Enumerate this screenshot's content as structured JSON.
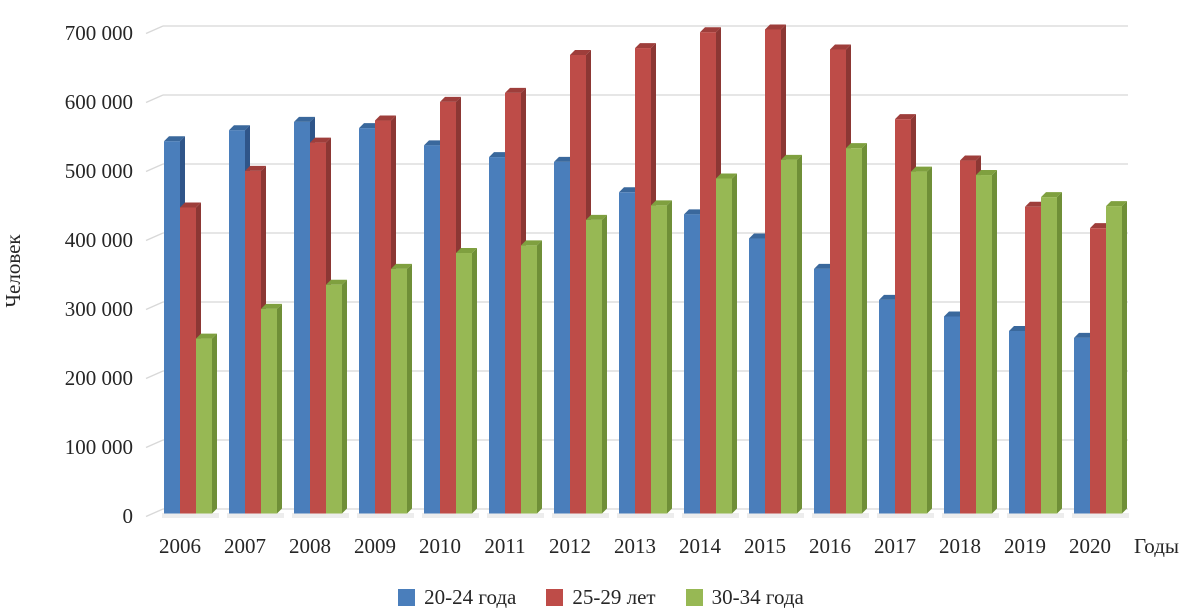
{
  "chart_data": {
    "type": "bar",
    "title": "",
    "ylabel": "Человек",
    "xlabel": "Годы",
    "categories": [
      "2006",
      "2007",
      "2008",
      "2009",
      "2010",
      "2011",
      "2012",
      "2013",
      "2014",
      "2015",
      "2016",
      "2017",
      "2018",
      "2019",
      "2020"
    ],
    "series": [
      {
        "name": "20-24 года",
        "color": "#4A7EBB",
        "color_top": "#3A689C",
        "color_side": "#2F5589",
        "values": [
          533000,
          549000,
          561000,
          552000,
          527000,
          510000,
          503000,
          459000,
          427000,
          392000,
          348000,
          303000,
          279000,
          258000,
          248000
        ]
      },
      {
        "name": "25-29 лет",
        "color": "#BE4C48",
        "color_top": "#9E3E3B",
        "color_side": "#8C3734",
        "values": [
          437000,
          490000,
          531000,
          563000,
          590000,
          603000,
          658000,
          668000,
          691000,
          695000,
          666000,
          565000,
          505000,
          438000,
          407000
        ]
      },
      {
        "name": "30-34 года",
        "color": "#97B854",
        "color_top": "#7FA03F",
        "color_side": "#6F8F37",
        "values": [
          247000,
          290000,
          325000,
          348000,
          371000,
          382000,
          419000,
          440000,
          479000,
          506000,
          523000,
          489000,
          484000,
          452000,
          439000
        ]
      }
    ],
    "ylim": [
      0,
      700000
    ],
    "ytick_step": 100000,
    "ytick_labels": [
      "0",
      "100 000",
      "200 000",
      "300 000",
      "400 000",
      "500 000",
      "600 000",
      "700 000"
    ],
    "grid": true,
    "gridline_color": "#D8D8D8",
    "legend_position": "bottom"
  }
}
